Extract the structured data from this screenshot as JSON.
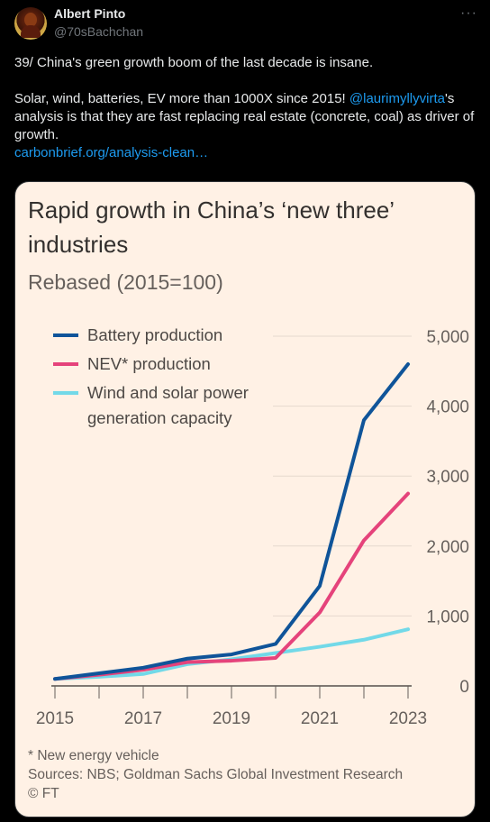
{
  "tweet": {
    "author_name": "Albert Pinto",
    "author_handle": "@70sBachchan",
    "line1": "39/ China's green growth boom of the last decade  is  insane.",
    "line2_start": "Solar, wind, batteries, EV more than 1000X since 2015! ",
    "mention": "@laurimyllyvirta",
    "line2_end": "'s analysis is that they are fast replacing real estate (concrete, coal) as driver of growth.",
    "link_text": "carbonbrief.org/analysis-clean…",
    "more_icon": "more-horizontal-icon"
  },
  "chart_data": {
    "type": "line",
    "title": "Rapid growth in China’s ‘new three’ industries",
    "subtitle": "Rebased (2015=100)",
    "x": [
      2015,
      2016,
      2017,
      2018,
      2019,
      2020,
      2021,
      2022,
      2023
    ],
    "x_tick_labels": [
      "2015",
      "2017",
      "2019",
      "2021",
      "2023"
    ],
    "y_ticks": [
      "5,000",
      "4,000",
      "3,000",
      "2,000",
      "1,000",
      "0"
    ],
    "ylim": [
      0,
      5000
    ],
    "series": [
      {
        "name": "Battery production",
        "color": "#0f5499",
        "values": [
          100,
          180,
          260,
          390,
          450,
          600,
          1430,
          3800,
          4600
        ]
      },
      {
        "name": "NEV* production",
        "color": "#e5437b",
        "values": [
          100,
          160,
          230,
          340,
          360,
          400,
          1050,
          2080,
          2750
        ]
      },
      {
        "name": "Wind and solar power generation capacity",
        "color": "#72d9e8",
        "values": [
          100,
          130,
          170,
          310,
          380,
          470,
          560,
          660,
          810
        ]
      }
    ],
    "legend_placement": "top-left",
    "grid": true,
    "footnote": "* New energy vehicle",
    "sources": "Sources: NBS; Goldman Sachs Global Investment Research",
    "credit": "© FT"
  }
}
